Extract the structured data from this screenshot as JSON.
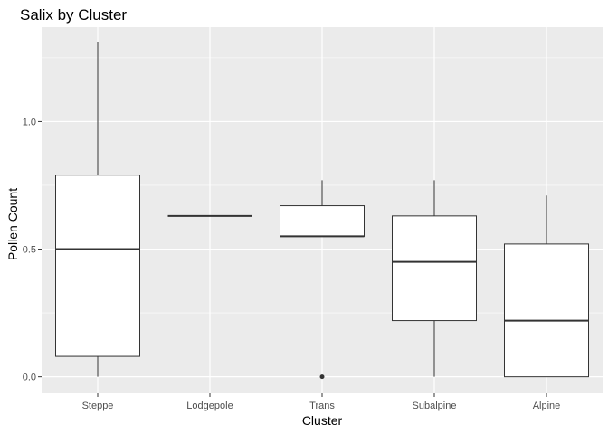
{
  "chart_data": {
    "type": "boxplot",
    "title": "Salix by Cluster",
    "xlabel": "Cluster",
    "ylabel": "Pollen Count",
    "categories": [
      "Steppe",
      "Lodgepole",
      "Trans",
      "Subalpine",
      "Alpine"
    ],
    "boxes": [
      {
        "category": "Steppe",
        "min": 0.0,
        "q1": 0.08,
        "median": 0.5,
        "q3": 0.79,
        "max": 1.31,
        "outliers": []
      },
      {
        "category": "Lodgepole",
        "min": 0.63,
        "q1": 0.63,
        "median": 0.63,
        "q3": 0.63,
        "max": 0.63,
        "outliers": []
      },
      {
        "category": "Trans",
        "min": 0.55,
        "q1": 0.55,
        "median": 0.55,
        "q3": 0.67,
        "max": 0.77,
        "outliers": [
          0.0
        ]
      },
      {
        "category": "Subalpine",
        "min": 0.0,
        "q1": 0.22,
        "median": 0.45,
        "q3": 0.63,
        "max": 0.77,
        "outliers": []
      },
      {
        "category": "Alpine",
        "min": 0.0,
        "q1": 0.0,
        "median": 0.22,
        "q3": 0.52,
        "max": 0.71,
        "outliers": []
      }
    ],
    "y_ticks": [
      0.0,
      0.5,
      1.0
    ],
    "y_tick_labels": [
      "0.0",
      "0.5",
      "1.0"
    ],
    "ylim": [
      -0.065,
      1.37
    ],
    "grid": true,
    "panel_background": "#ebebeb",
    "grid_color": "#ffffff",
    "box_fill": "#ffffff",
    "line_color": "#333333"
  }
}
